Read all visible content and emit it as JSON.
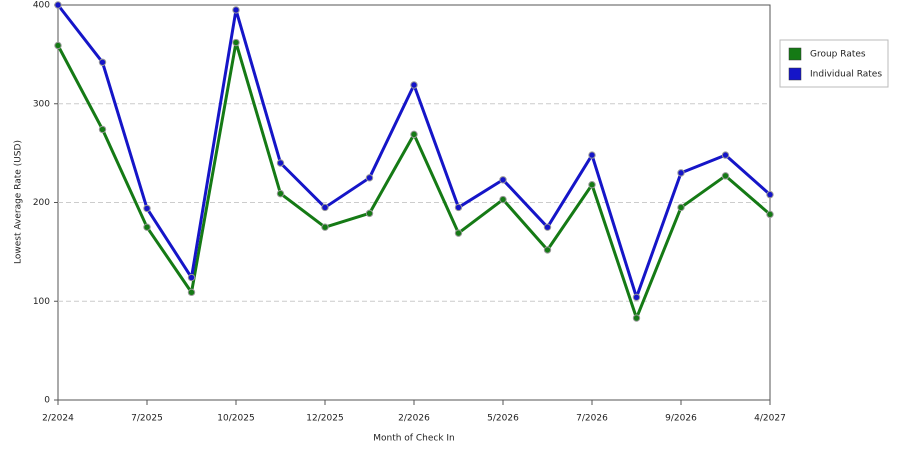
{
  "chart_data": {
    "type": "line",
    "x_label": "Month of Check In",
    "y_label": "Lowest Average Rate (USD)",
    "categories": [
      "2/2024",
      null,
      "7/2025",
      null,
      "10/2025",
      null,
      "12/2025",
      null,
      "2/2026",
      null,
      "5/2026",
      null,
      "7/2026",
      null,
      "9/2026",
      null,
      "4/2027"
    ],
    "series": [
      {
        "name": "Group Rates",
        "color": "#157a15",
        "values": [
          359,
          274,
          175,
          109,
          362,
          209,
          175,
          189,
          269,
          169,
          203,
          152,
          218,
          83,
          195,
          227,
          188
        ]
      },
      {
        "name": "Individual Rates",
        "color": "#1515c8",
        "values": [
          400,
          342,
          194,
          124,
          395,
          240,
          195,
          225,
          319,
          195,
          223,
          175,
          248,
          104,
          230,
          248,
          208
        ]
      }
    ],
    "ylim": [
      0,
      400
    ],
    "yticks": [
      0,
      100,
      200,
      300,
      400
    ],
    "grid": true,
    "legend": "right"
  }
}
